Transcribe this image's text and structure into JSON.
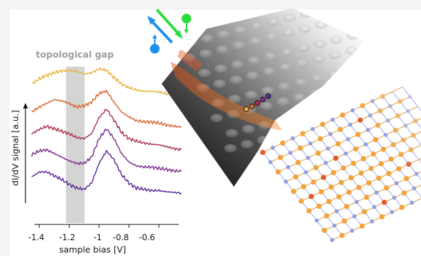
{
  "plot": {
    "gap_label": "topological gap",
    "ylabel": "dI/dV signal [a.u.]",
    "xlabel": "sample bias [V]",
    "xticks": [
      "-1.4",
      "-1.2",
      "-1",
      "-0.8",
      "-0.6"
    ]
  },
  "chart_data": {
    "type": "line",
    "xlabel": "sample bias [V]",
    "ylabel": "dI/dV signal [a.u.]",
    "xlim": [
      -1.45,
      -0.45
    ],
    "gap_region": [
      -1.21,
      -1.09
    ],
    "series": [
      {
        "color": "#e8b23a",
        "x": [
          -1.45,
          -1.4,
          -1.35,
          -1.3,
          -1.25,
          -1.2,
          -1.15,
          -1.1,
          -1.05,
          -1.0,
          -0.95,
          -0.9,
          -0.85,
          -0.8,
          -0.75,
          -0.7,
          -0.65,
          -0.6,
          -0.55,
          -0.5,
          -0.45
        ],
        "y": [
          0.62,
          0.7,
          0.76,
          0.8,
          0.83,
          0.84,
          0.82,
          0.78,
          0.8,
          0.86,
          0.84,
          0.72,
          0.62,
          0.56,
          0.52,
          0.5,
          0.5,
          0.49,
          0.46,
          0.44,
          0.43
        ]
      },
      {
        "color": "#d9662f",
        "x": [
          -1.45,
          -1.4,
          -1.35,
          -1.3,
          -1.25,
          -1.2,
          -1.15,
          -1.1,
          -1.05,
          -1.0,
          -0.95,
          -0.9,
          -0.85,
          -0.8,
          -0.75,
          -0.7,
          -0.65,
          -0.6,
          -0.55,
          -0.5,
          -0.45
        ],
        "y": [
          0.52,
          0.6,
          0.66,
          0.72,
          0.7,
          0.66,
          0.6,
          0.62,
          0.68,
          0.82,
          0.86,
          0.68,
          0.52,
          0.44,
          0.38,
          0.36,
          0.36,
          0.34,
          0.31,
          0.29,
          0.28
        ]
      },
      {
        "color": "#a8324a",
        "x": [
          -1.45,
          -1.4,
          -1.35,
          -1.3,
          -1.25,
          -1.2,
          -1.15,
          -1.1,
          -1.05,
          -1.0,
          -0.95,
          -0.9,
          -0.85,
          -0.8,
          -0.75,
          -0.7,
          -0.65,
          -0.6,
          -0.55,
          -0.5,
          -0.45
        ],
        "y": [
          0.48,
          0.55,
          0.6,
          0.56,
          0.52,
          0.48,
          0.42,
          0.4,
          0.48,
          0.74,
          0.88,
          0.7,
          0.5,
          0.4,
          0.36,
          0.33,
          0.31,
          0.3,
          0.27,
          0.24,
          0.22
        ]
      },
      {
        "color": "#7b2f8e",
        "x": [
          -1.45,
          -1.4,
          -1.35,
          -1.3,
          -1.25,
          -1.2,
          -1.15,
          -1.1,
          -1.05,
          -1.0,
          -0.95,
          -0.9,
          -0.85,
          -0.8,
          -0.75,
          -0.7,
          -0.65,
          -0.6,
          -0.55,
          -0.5,
          -0.45
        ],
        "y": [
          0.44,
          0.5,
          0.52,
          0.46,
          0.4,
          0.34,
          0.3,
          0.3,
          0.4,
          0.7,
          0.86,
          0.7,
          0.46,
          0.32,
          0.26,
          0.24,
          0.24,
          0.22,
          0.2,
          0.18,
          0.17
        ]
      },
      {
        "color": "#5b2a98",
        "x": [
          -1.45,
          -1.4,
          -1.35,
          -1.3,
          -1.25,
          -1.2,
          -1.15,
          -1.1,
          -1.05,
          -1.0,
          -0.95,
          -0.9,
          -0.85,
          -0.8,
          -0.75,
          -0.7,
          -0.65,
          -0.6,
          -0.55,
          -0.5,
          -0.45
        ],
        "y": [
          0.38,
          0.46,
          0.46,
          0.4,
          0.34,
          0.26,
          0.2,
          0.18,
          0.28,
          0.6,
          0.8,
          0.66,
          0.42,
          0.28,
          0.2,
          0.18,
          0.16,
          0.16,
          0.14,
          0.13,
          0.12
        ]
      }
    ]
  },
  "colors": {
    "gap_band": "#d4d4d4",
    "spin_green": "#2bdc3f",
    "spin_blue": "#1e90e8",
    "atom_orange": "#f2a33a",
    "atom_blue": "#8fa0e8"
  },
  "icons": [
    "spin-up-blue-icon",
    "spin-down-green-icon",
    "propagation-arrows-icon"
  ]
}
